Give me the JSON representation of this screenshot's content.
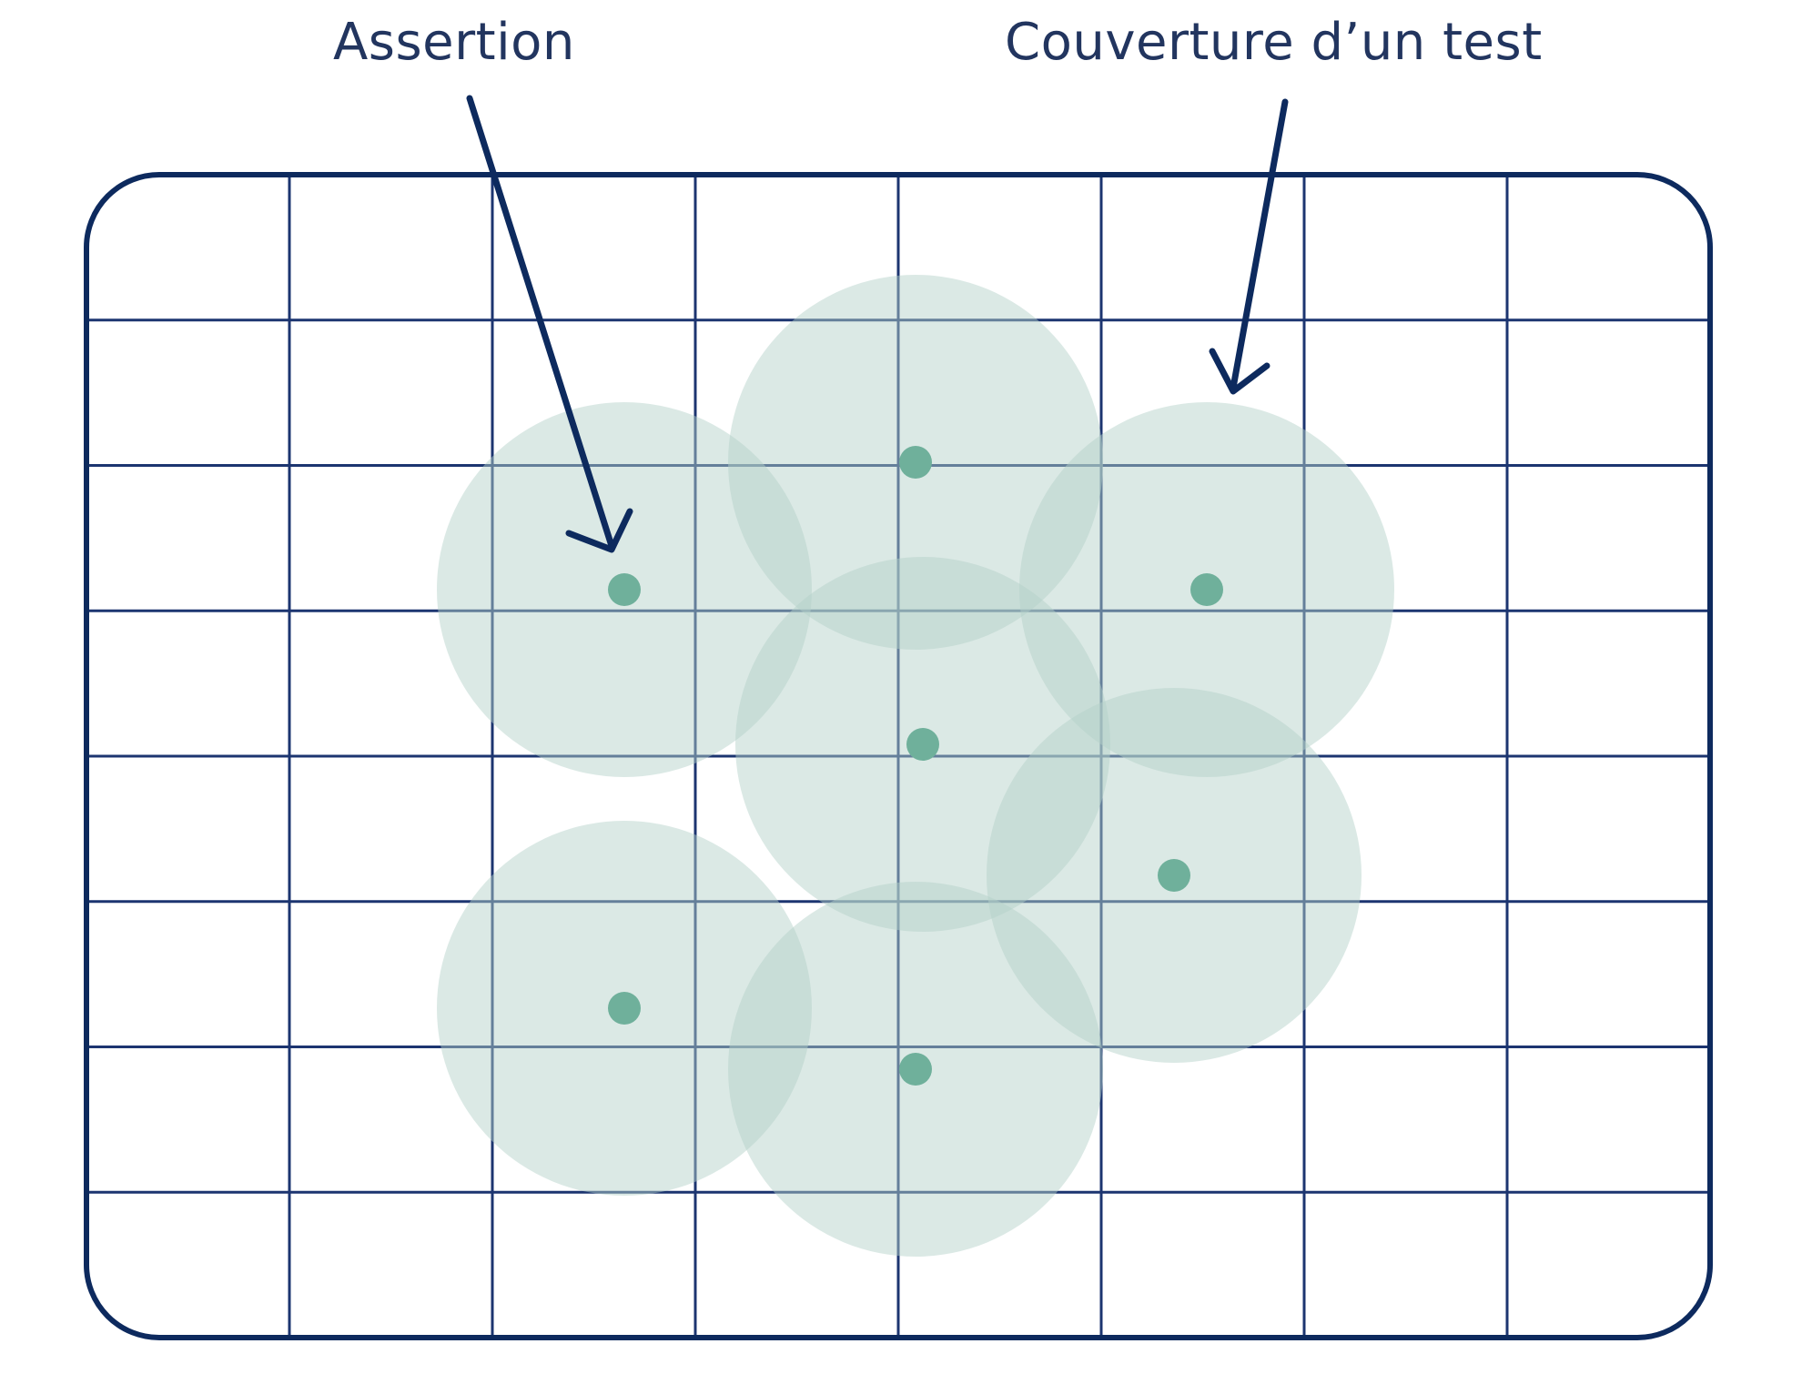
{
  "labels": {
    "assertion": "Assertion",
    "coverage": "Couverture d’un test"
  },
  "colors": {
    "frame": "#0d2a5e",
    "grid": "#1c3570",
    "coverage_fill": "#b4d2c8",
    "assertion_dot": "#6fb09b",
    "label_text": "#22355f"
  },
  "grid": {
    "columns": 8,
    "rows": 8
  },
  "tests": [
    {
      "id": "test-1"
    },
    {
      "id": "test-2"
    },
    {
      "id": "test-3"
    },
    {
      "id": "test-4"
    },
    {
      "id": "test-5"
    },
    {
      "id": "test-6"
    },
    {
      "id": "test-7"
    }
  ]
}
